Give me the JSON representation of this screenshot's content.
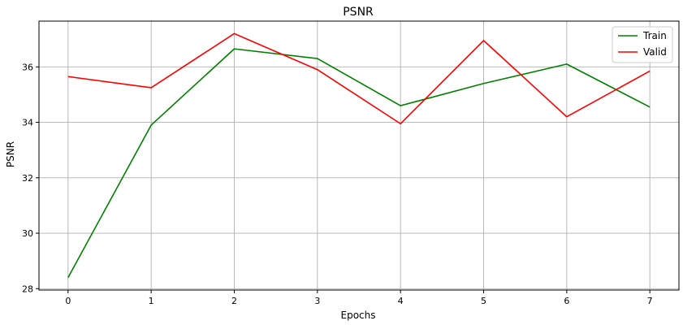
{
  "chart_data": {
    "type": "line",
    "title": "PSNR",
    "xlabel": "Epochs",
    "ylabel": "PSNR",
    "x": [
      0,
      1,
      2,
      3,
      4,
      5,
      6,
      7
    ],
    "xlim": [
      -0.35,
      7.35
    ],
    "ylim": [
      27.95,
      37.65
    ],
    "xticks": [
      0,
      1,
      2,
      3,
      4,
      5,
      6,
      7
    ],
    "yticks": [
      28,
      30,
      32,
      34,
      36
    ],
    "grid": true,
    "legend_position": "top-right",
    "series": [
      {
        "name": "Train",
        "color": "#008000",
        "values": [
          28.4,
          33.9,
          36.65,
          36.3,
          34.6,
          35.4,
          36.1,
          34.55
        ]
      },
      {
        "name": "Valid",
        "color": "#ff0000",
        "values": [
          35.65,
          35.25,
          37.2,
          35.9,
          33.95,
          36.95,
          34.2,
          35.85
        ]
      }
    ]
  }
}
